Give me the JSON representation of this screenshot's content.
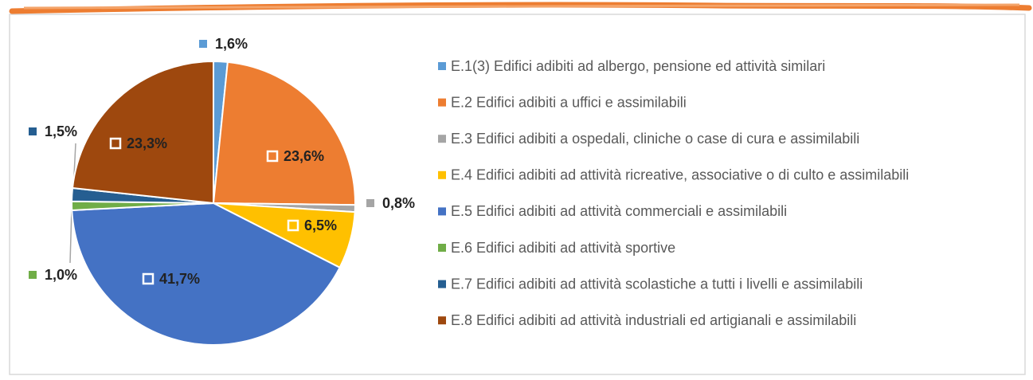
{
  "chart_data": {
    "type": "pie",
    "categories": [
      "E.1(3) Edifici adibiti ad albergo, pensione ed attività similari",
      "E.2 Edifici adibiti a uffici e assimilabili",
      "E.3 Edifici adibiti a ospedali, cliniche o case di cura e assimilabili",
      "E.4 Edifici adibiti ad attività ricreative, associative o di culto e assimilabili",
      "E.5 Edifici adibiti ad attività commerciali e assimilabili",
      "E.6 Edifici adibiti ad attività sportive",
      "E.7 Edifici adibiti ad attività scolastiche a tutti i livelli e assimilabili",
      "E.8 Edifici adibiti ad attività industriali ed artigianali e assimilabili"
    ],
    "values": [
      1.6,
      23.6,
      0.8,
      6.5,
      41.7,
      1.0,
      1.5,
      23.3
    ],
    "value_labels": [
      "1,6%",
      "23,6%",
      "0,8%",
      "6,5%",
      "41,7%",
      "1,0%",
      "1,5%",
      "23,3%"
    ],
    "colors": [
      "#5b9bd5",
      "#ed7d31",
      "#a5a5a5",
      "#ffc000",
      "#4472c4",
      "#70ad47",
      "#255e91",
      "#9e480e"
    ],
    "legend": "right"
  }
}
